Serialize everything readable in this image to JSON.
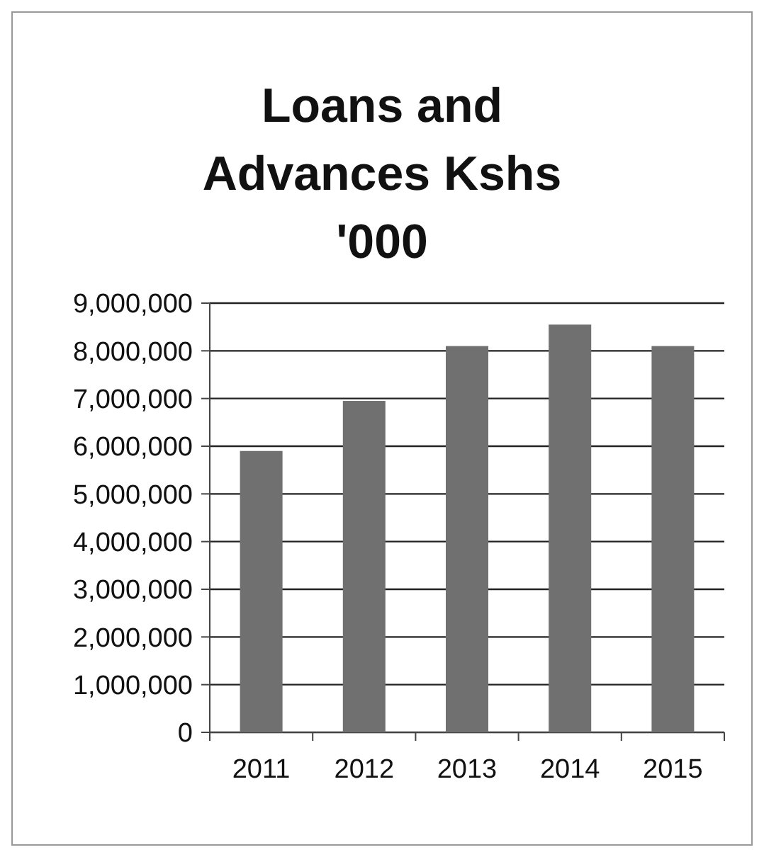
{
  "chart_data": {
    "type": "bar",
    "title": "Loans and Advances Kshs '000",
    "categories": [
      "2011",
      "2012",
      "2013",
      "2014",
      "2015"
    ],
    "values": [
      5900000,
      6950000,
      8100000,
      8550000,
      8100000
    ],
    "color": "#707070",
    "ylim": [
      0,
      9000000
    ],
    "yticks": [
      {
        "value": 0,
        "label": "0"
      },
      {
        "value": 1000000,
        "label": "1,000,000"
      },
      {
        "value": 2000000,
        "label": "2,000,000"
      },
      {
        "value": 3000000,
        "label": "3,000,000"
      },
      {
        "value": 4000000,
        "label": "4,000,000"
      },
      {
        "value": 5000000,
        "label": "5,000,000"
      },
      {
        "value": 6000000,
        "label": "6,000,000"
      },
      {
        "value": 7000000,
        "label": "7,000,000"
      },
      {
        "value": 8000000,
        "label": "8,000,000"
      },
      {
        "value": 9000000,
        "label": "9,000,000"
      }
    ],
    "grid": "y"
  }
}
